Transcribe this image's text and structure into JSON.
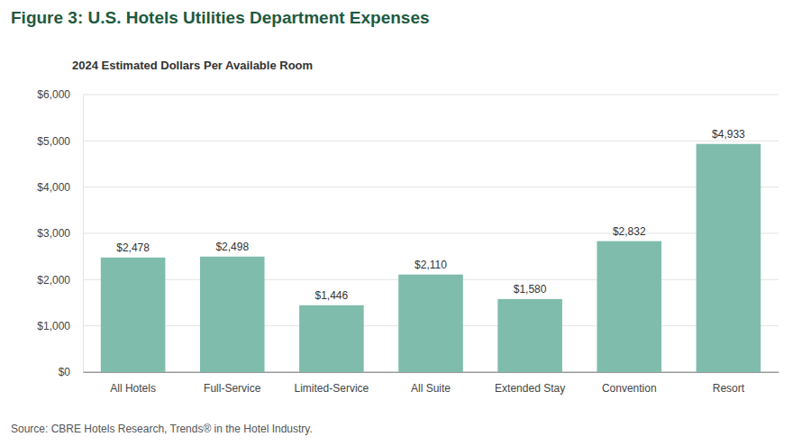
{
  "chart_data": {
    "type": "bar",
    "title": "Figure 3: U.S. Hotels Utilities Department Expenses",
    "subtitle": "2024 Estimated Dollars Per Available Room",
    "source": "Source: CBRE Hotels Research, Trends® in the Hotel Industry.",
    "categories": [
      "All Hotels",
      "Full-Service",
      "Limited-Service",
      "All Suite",
      "Extended Stay",
      "Convention",
      "Resort"
    ],
    "values": [
      2478,
      2498,
      1446,
      2110,
      1580,
      2832,
      4933
    ],
    "value_labels": [
      "$2,478",
      "$2,498",
      "$1,446",
      "$2,110",
      "$1,580",
      "$2,832",
      "$4,933"
    ],
    "color": "#7fbcab",
    "ylim": [
      0,
      6000
    ],
    "yticks": [
      {
        "value": 0,
        "label": "$0"
      },
      {
        "value": 1000,
        "label": "$1,000"
      },
      {
        "value": 2000,
        "label": "$2,000"
      },
      {
        "value": 3000,
        "label": "$3,000"
      },
      {
        "value": 4000,
        "label": "$4,000"
      },
      {
        "value": 5000,
        "label": "$5,000"
      },
      {
        "value": 6000,
        "label": "$6,000"
      }
    ],
    "grid": true,
    "data_labels": true
  }
}
